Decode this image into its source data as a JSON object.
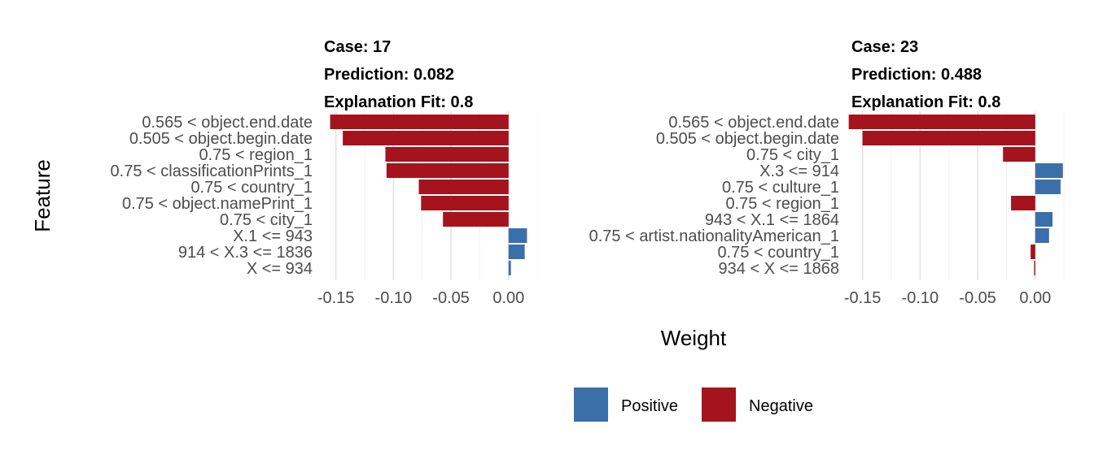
{
  "chart_data": [
    {
      "type": "bar",
      "orientation": "horizontal",
      "title_lines": [
        "Case: 17",
        "Prediction: 0.082",
        "Explanation Fit: 0.8"
      ],
      "categories": [
        "0.565 < object.end.date",
        "0.505 < object.begin.date",
        "0.75 < region_1",
        "0.75 < classificationPrints_1",
        "0.75 < country_1",
        "0.75 < object.namePrint_1",
        "0.75 < city_1",
        "X.1 <= 943",
        "914 < X.3 <= 1836",
        "X <= 934"
      ],
      "values": [
        -0.155,
        -0.144,
        -0.107,
        -0.106,
        -0.078,
        -0.076,
        -0.057,
        0.016,
        0.014,
        0.002
      ],
      "xlim": [
        -0.166,
        0.027
      ],
      "xticks": [
        "-0.15",
        "-0.10",
        "-0.05",
        "0.00"
      ]
    },
    {
      "type": "bar",
      "orientation": "horizontal",
      "title_lines": [
        "Case: 23",
        "Prediction: 0.488",
        "Explanation Fit: 0.8"
      ],
      "categories": [
        "0.565 < object.end.date",
        "0.505 < object.begin.date",
        "0.75 < city_1",
        "X.3 <= 914",
        "0.75 < culture_1",
        "0.75 < region_1",
        "943 < X.1 <= 1864",
        "0.75 < artist.nationalityAmerican_1",
        "0.75 < country_1",
        "934 < X <= 1868"
      ],
      "values": [
        -0.162,
        -0.15,
        -0.028,
        0.024,
        0.022,
        -0.021,
        0.015,
        0.012,
        -0.004,
        -0.001
      ],
      "xlim": [
        -0.166,
        0.027
      ],
      "xticks": [
        "-0.15",
        "-0.10",
        "-0.05",
        "0.00"
      ]
    }
  ],
  "axes": {
    "xlabel": "Weight",
    "ylabel": "Feature"
  },
  "legend": {
    "position": "bottom",
    "items": [
      {
        "label": "Positive",
        "color": "#3a6fa9"
      },
      {
        "label": "Negative",
        "color": "#a5131d"
      }
    ]
  }
}
